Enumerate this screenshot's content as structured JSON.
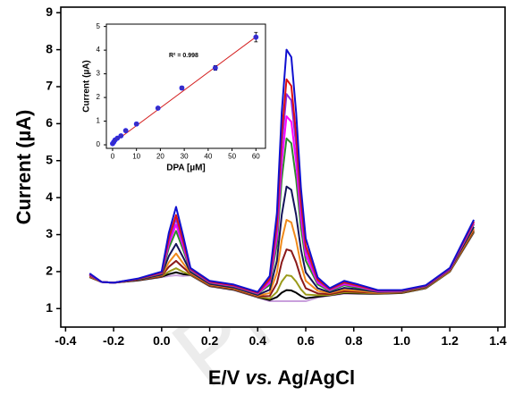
{
  "chart_data": [
    {
      "type": "line",
      "xlabel": [
        "E/V ",
        "vs.",
        " Ag/AgCl"
      ],
      "ylabel": "Current (µA)",
      "watermark": "Preproof",
      "xlim": [
        -0.42,
        1.43
      ],
      "ylim": [
        0.5,
        9.15
      ],
      "xticks": [
        -0.4,
        -0.2,
        {
          "value": 0,
          "label": "0.0"
        },
        0.2,
        0.4,
        0.6,
        0.8,
        {
          "value": 1,
          "label": "1.0"
        },
        1.2,
        1.4
      ],
      "yticks": [
        1,
        2,
        3,
        4,
        5,
        6,
        7,
        8,
        9
      ],
      "x": [
        -0.3,
        -0.25,
        -0.2,
        -0.1,
        0,
        0.03,
        0.06,
        0.09,
        0.12,
        0.2,
        0.3,
        0.4,
        0.45,
        0.48,
        0.5,
        0.52,
        0.54,
        0.56,
        0.58,
        0.6,
        0.65,
        0.7,
        0.76,
        0.82,
        0.9,
        1.0,
        1.1,
        1.2,
        1.3
      ],
      "series": [
        {
          "color": "#c9a0dc",
          "values": [
            1.85,
            1.72,
            1.7,
            1.76,
            1.85,
            1.88,
            1.9,
            1.88,
            1.9,
            1.6,
            1.5,
            1.3,
            1.2,
            1.2,
            1.2,
            1.2,
            1.2,
            1.2,
            1.2,
            1.2,
            1.3,
            1.35,
            1.4,
            1.4,
            1.4,
            1.42,
            1.55,
            2.0,
            3.05
          ]
        },
        {
          "color": "#000000",
          "values": [
            1.85,
            1.72,
            1.7,
            1.76,
            1.86,
            1.93,
            1.98,
            1.93,
            1.91,
            1.61,
            1.51,
            1.31,
            1.23,
            1.31,
            1.43,
            1.5,
            1.49,
            1.43,
            1.34,
            1.28,
            1.32,
            1.36,
            1.42,
            1.41,
            1.4,
            1.42,
            1.55,
            2.0,
            3.07
          ]
        },
        {
          "color": "#9a9a1a",
          "values": [
            1.86,
            1.72,
            1.7,
            1.77,
            1.87,
            2.0,
            2.09,
            1.99,
            1.92,
            1.62,
            1.52,
            1.32,
            1.27,
            1.45,
            1.73,
            1.9,
            1.88,
            1.73,
            1.52,
            1.38,
            1.36,
            1.37,
            1.44,
            1.43,
            1.41,
            1.43,
            1.56,
            2.01,
            3.09
          ]
        },
        {
          "color": "#8b1a1a",
          "values": [
            1.87,
            1.72,
            1.7,
            1.77,
            1.88,
            2.13,
            2.29,
            2.11,
            1.94,
            1.63,
            1.53,
            1.33,
            1.34,
            1.69,
            2.25,
            2.6,
            2.56,
            2.25,
            1.83,
            1.55,
            1.41,
            1.39,
            1.47,
            1.45,
            1.42,
            1.44,
            1.57,
            2.02,
            3.12
          ]
        },
        {
          "color": "#f08a1c",
          "values": [
            1.88,
            1.72,
            1.7,
            1.78,
            1.9,
            2.25,
            2.49,
            2.22,
            1.96,
            1.65,
            1.55,
            1.35,
            1.42,
            1.97,
            2.85,
            3.4,
            3.33,
            2.85,
            2.19,
            1.75,
            1.48,
            1.42,
            1.51,
            1.48,
            1.43,
            1.45,
            1.58,
            2.03,
            3.16
          ]
        },
        {
          "color": "#14145a",
          "values": [
            1.9,
            1.72,
            1.7,
            1.78,
            1.92,
            2.42,
            2.75,
            2.38,
            1.99,
            1.67,
            1.57,
            1.37,
            1.51,
            2.29,
            3.53,
            4.3,
            4.21,
            3.53,
            2.6,
            1.98,
            1.55,
            1.44,
            1.56,
            1.52,
            1.45,
            1.46,
            1.59,
            2.05,
            3.21
          ]
        },
        {
          "color": "#2e8b2e",
          "values": [
            1.92,
            1.72,
            1.7,
            1.79,
            1.95,
            2.64,
            3.1,
            2.58,
            2.03,
            1.7,
            1.6,
            1.4,
            1.64,
            2.74,
            4.5,
            5.6,
            5.47,
            4.5,
            3.18,
            2.3,
            1.65,
            1.48,
            1.63,
            1.56,
            1.47,
            1.47,
            1.6,
            2.07,
            3.28
          ]
        },
        {
          "color": "#ff00ff",
          "values": [
            1.92,
            1.72,
            1.7,
            1.8,
            1.96,
            2.75,
            3.27,
            2.68,
            2.05,
            1.71,
            1.61,
            1.41,
            1.7,
            2.95,
            4.95,
            6.2,
            6.05,
            4.95,
            3.45,
            2.45,
            1.7,
            1.5,
            1.66,
            1.59,
            1.47,
            1.48,
            1.61,
            2.07,
            3.31
          ]
        },
        {
          "color": "#8a2be2",
          "values": [
            1.93,
            1.72,
            1.7,
            1.8,
            1.97,
            2.84,
            3.42,
            2.77,
            2.06,
            1.72,
            1.62,
            1.42,
            1.76,
            3.16,
            5.4,
            6.8,
            6.63,
            5.4,
            3.72,
            2.6,
            1.75,
            1.52,
            1.69,
            1.61,
            1.48,
            1.49,
            1.62,
            2.08,
            3.34
          ]
        },
        {
          "color": "#e01010",
          "values": [
            1.94,
            1.72,
            1.7,
            1.8,
            1.98,
            2.91,
            3.53,
            2.83,
            2.08,
            1.73,
            1.63,
            1.43,
            1.8,
            3.3,
            5.7,
            7.2,
            7.02,
            5.7,
            3.9,
            2.7,
            1.78,
            1.53,
            1.71,
            1.62,
            1.49,
            1.49,
            1.62,
            2.09,
            3.36
          ]
        },
        {
          "color": "#1010d0",
          "values": [
            1.95,
            1.72,
            1.7,
            1.81,
            2.0,
            3.05,
            3.75,
            2.96,
            2.1,
            1.75,
            1.65,
            1.45,
            1.88,
            3.58,
            6.3,
            8.0,
            7.8,
            6.3,
            4.26,
            2.9,
            1.84,
            1.55,
            1.75,
            1.65,
            1.5,
            1.5,
            1.63,
            2.1,
            3.4
          ]
        }
      ]
    },
    {
      "type": "scatter",
      "xlabel": "DPA [µM]",
      "ylabel": "Current (µA)",
      "annotation": "R² = 0.998",
      "xlim": [
        -2.6,
        64
      ],
      "ylim": [
        -0.15,
        5.1
      ],
      "xticks": [
        0,
        10,
        20,
        30,
        40,
        50,
        60
      ],
      "yticks": [
        0,
        1,
        2,
        3,
        4,
        5
      ],
      "color": "#3a2fc0",
      "x": [
        0,
        0.5,
        1,
        2,
        3.5,
        5.5,
        10,
        19,
        29,
        43,
        60
      ],
      "values": [
        0.05,
        0.12,
        0.2,
        0.28,
        0.38,
        0.6,
        0.88,
        1.55,
        2.4,
        3.25,
        4.55
      ],
      "errors": [
        0.05,
        0.05,
        0.05,
        0.05,
        0.05,
        0.06,
        0.06,
        0.06,
        0.08,
        0.1,
        0.2
      ],
      "fit": {
        "color": "#d42020",
        "x": [
          0,
          60
        ],
        "values": [
          0.06,
          4.56
        ]
      }
    }
  ]
}
